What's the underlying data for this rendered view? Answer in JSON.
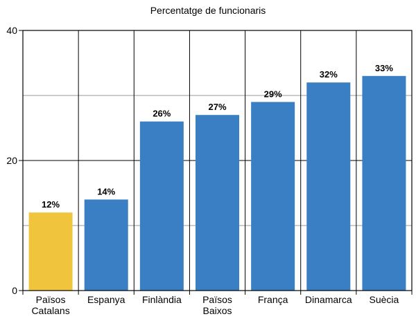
{
  "chart_data": {
    "type": "bar",
    "title": "Percentatge de funcionaris",
    "categories": [
      [
        "Països",
        "Catalans"
      ],
      [
        "Espanya"
      ],
      [
        "Finlàndia"
      ],
      [
        "Països",
        "Baixos"
      ],
      [
        "França"
      ],
      [
        "Dinamarca"
      ],
      [
        "Suècia"
      ]
    ],
    "values": [
      12,
      14,
      26,
      27,
      29,
      32,
      33
    ],
    "data_labels": [
      "12%",
      "14%",
      "26%",
      "27%",
      "29%",
      "32%",
      "33%"
    ],
    "bar_colors": [
      "#f0c43c",
      "#3a7fc4",
      "#3a7fc4",
      "#3a7fc4",
      "#3a7fc4",
      "#3a7fc4",
      "#3a7fc4"
    ],
    "ylim": [
      0,
      40
    ],
    "yticks": [
      0,
      20,
      40
    ],
    "minor_gridlines": [
      10,
      30
    ],
    "grid": true,
    "xlabel": "",
    "ylabel": ""
  }
}
